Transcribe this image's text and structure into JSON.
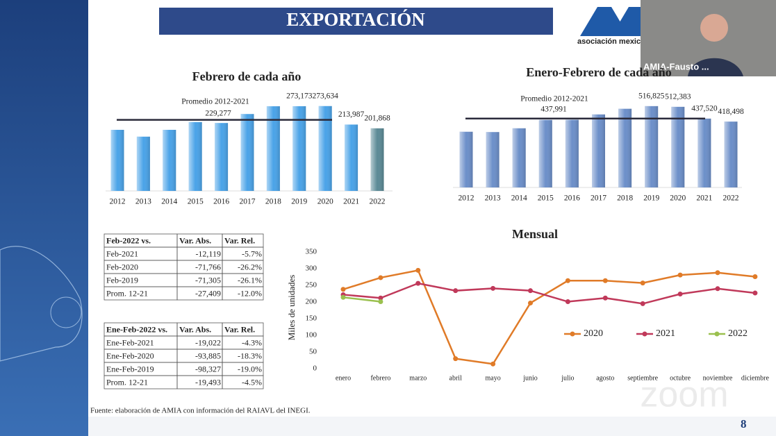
{
  "slide_title": "EXPORTACIÓN",
  "logo_text": "asociación mexic",
  "video_label": "AMIA-Fausto ...",
  "source": "Fuente: elaboración de AMIA con información del RAIAVL del INEGI.",
  "page_number": "8",
  "watermark": "zoom",
  "chart_data": [
    {
      "type": "bar",
      "title": "Febrero de cada año",
      "categories": [
        "2012",
        "2013",
        "2014",
        "2015",
        "2016",
        "2017",
        "2018",
        "2019",
        "2020",
        "2021",
        "2022"
      ],
      "values": [
        197000,
        175000,
        197000,
        222000,
        219000,
        248000,
        273000,
        273173,
        273634,
        213987,
        201868
      ],
      "value_labels": [
        null,
        null,
        null,
        null,
        null,
        null,
        null,
        "273,173",
        "273,634",
        "213,987",
        "201,868"
      ],
      "colors": [
        "#4aa3e8",
        "#4aa3e8",
        "#4aa3e8",
        "#4aa3e8",
        "#4aa3e8",
        "#4aa3e8",
        "#4aa3e8",
        "#4aa3e8",
        "#4aa3e8",
        "#4aa3e8",
        "#5b8a96"
      ],
      "average": {
        "label": "Promedio 2012-2021",
        "value": 229277,
        "value_label": "229,277"
      },
      "ylim": [
        0,
        300000
      ]
    },
    {
      "type": "bar",
      "title": "Enero-Febrero de cada año",
      "categories": [
        "2012",
        "2013",
        "2014",
        "2015",
        "2016",
        "2017",
        "2018",
        "2019",
        "2020",
        "2021",
        "2022"
      ],
      "values": [
        354000,
        352000,
        376000,
        429000,
        430000,
        464000,
        500000,
        516825,
        512383,
        437520,
        418498
      ],
      "value_labels": [
        null,
        null,
        null,
        null,
        null,
        null,
        null,
        "516,825",
        "512,383",
        "437,520",
        "418,498"
      ],
      "colors": [
        "#6c8fc9",
        "#6c8fc9",
        "#6c8fc9",
        "#6c8fc9",
        "#6c8fc9",
        "#6c8fc9",
        "#6c8fc9",
        "#6c8fc9",
        "#6c8fc9",
        "#6c8fc9",
        "#6c8fc9"
      ],
      "average": {
        "label": "Promedio 2012-2021",
        "value": 437991,
        "value_label": "437,991"
      },
      "ylim": [
        0,
        600000
      ]
    },
    {
      "type": "line",
      "title": "Mensual",
      "y_label": "Miles de unidades",
      "categories": [
        "enero",
        "febrero",
        "marzo",
        "abril",
        "mayo",
        "junio",
        "julio",
        "agosto",
        "septiembre",
        "octubre",
        "noviembre",
        "diciembre"
      ],
      "series": [
        {
          "name": "2020",
          "color": "#e07b28",
          "values": [
            238,
            273,
            295,
            30,
            14,
            197,
            264,
            264,
            257,
            281,
            288,
            276
          ]
        },
        {
          "name": "2021",
          "color": "#c0395a",
          "values": [
            222,
            212,
            256,
            234,
            241,
            234,
            201,
            212,
            195,
            224,
            240,
            227
          ]
        },
        {
          "name": "2022",
          "color": "#9bc04f",
          "values": [
            214,
            201,
            null,
            null,
            null,
            null,
            null,
            null,
            null,
            null,
            null,
            null
          ]
        }
      ],
      "ylim": [
        0,
        350
      ],
      "yticks": [
        0,
        50,
        100,
        150,
        200,
        250,
        300,
        350
      ],
      "grid": false
    }
  ],
  "tables": [
    {
      "header": [
        "Feb-2022 vs.",
        "Var. Abs.",
        "Var. Rel."
      ],
      "rows": [
        [
          "Feb-2021",
          "-12,119",
          "-5.7%"
        ],
        [
          "Feb-2020",
          "-71,766",
          "-26.2%"
        ],
        [
          "Feb-2019",
          "-71,305",
          "-26.1%"
        ],
        [
          "Prom. 12-21",
          "-27,409",
          "-12.0%"
        ]
      ]
    },
    {
      "header": [
        "Ene-Feb-2022 vs.",
        "Var. Abs.",
        "Var. Rel."
      ],
      "rows": [
        [
          "Ene-Feb-2021",
          "-19,022",
          "-4.3%"
        ],
        [
          "Ene-Feb-2020",
          "-93,885",
          "-18.3%"
        ],
        [
          "Ene-Feb-2019",
          "-98,327",
          "-19.0%"
        ],
        [
          "Prom. 12-21",
          "-19,493",
          "-4.5%"
        ]
      ]
    }
  ]
}
